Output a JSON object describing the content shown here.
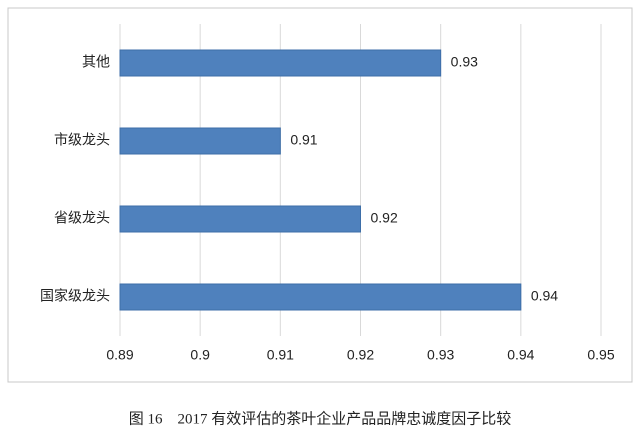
{
  "chart_data": {
    "type": "hbar",
    "title": "图 16　2017 有效评估的茶叶企业产品品牌忠诚度因子比较",
    "categories": [
      "其他",
      "市级龙头",
      "省级龙头",
      "国家级龙头"
    ],
    "values": [
      0.93,
      0.91,
      0.92,
      0.94
    ],
    "color": "#4f81bd",
    "xlim": [
      0.89,
      0.95
    ],
    "xticks": [
      0.89,
      0.9,
      0.91,
      0.92,
      0.93,
      0.94,
      0.95
    ],
    "grid": true
  }
}
